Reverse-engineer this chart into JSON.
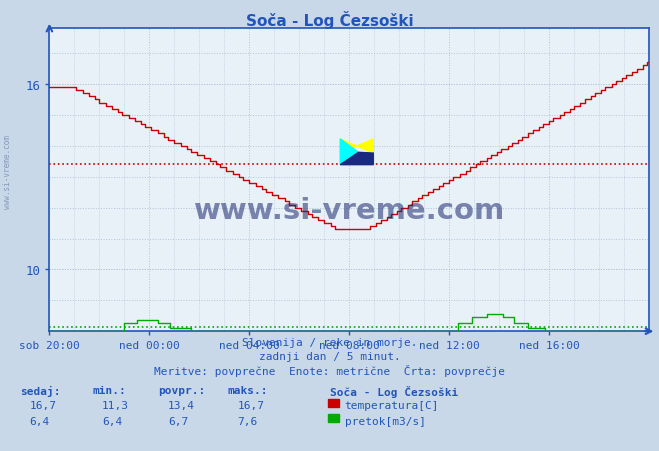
{
  "title": "Soča - Log Čezsoški",
  "bg_color": "#c8d8e8",
  "plot_bg_color": "#e8f0f8",
  "grid_color": "#b0c4d8",
  "x_labels": [
    "sob 20:00",
    "ned 00:00",
    "ned 04:00",
    "ned 08:00",
    "ned 12:00",
    "ned 16:00"
  ],
  "y_ticks": [
    10,
    16
  ],
  "y_min": 8.0,
  "y_max": 17.8,
  "temp_avg_line": 13.4,
  "flow_avg_line_scaled": 8.18,
  "title_color": "#2255bb",
  "temp_color": "#cc0000",
  "flow_color": "#00aa00",
  "axis_color": "#2255bb",
  "tick_label_color": "#2255bb",
  "text_color": "#2255bb",
  "watermark_text": "www.si-vreme.com",
  "subtitle1": "Slovenija / reke in morje.",
  "subtitle2": "zadnji dan / 5 minut.",
  "subtitle3": "Meritve: povprečne  Enote: metrične  Črta: povprečje",
  "legend_title": "Soča - Log Čezsoški",
  "legend_temp_label": "temperatura[C]",
  "legend_flow_label": "pretok[m3/s]",
  "stat_headers": [
    "sedaj:",
    "min.:",
    "povpr.:",
    "maks.:"
  ],
  "stat_temp": [
    "16,7",
    "11,3",
    "13,4",
    "16,7"
  ],
  "stat_flow": [
    "6,4",
    "6,4",
    "6,7",
    "7,6"
  ],
  "flow_scale_min": 8.0,
  "flow_scale_max": 8.6,
  "flow_data_min": 6.4,
  "flow_data_max": 7.6
}
